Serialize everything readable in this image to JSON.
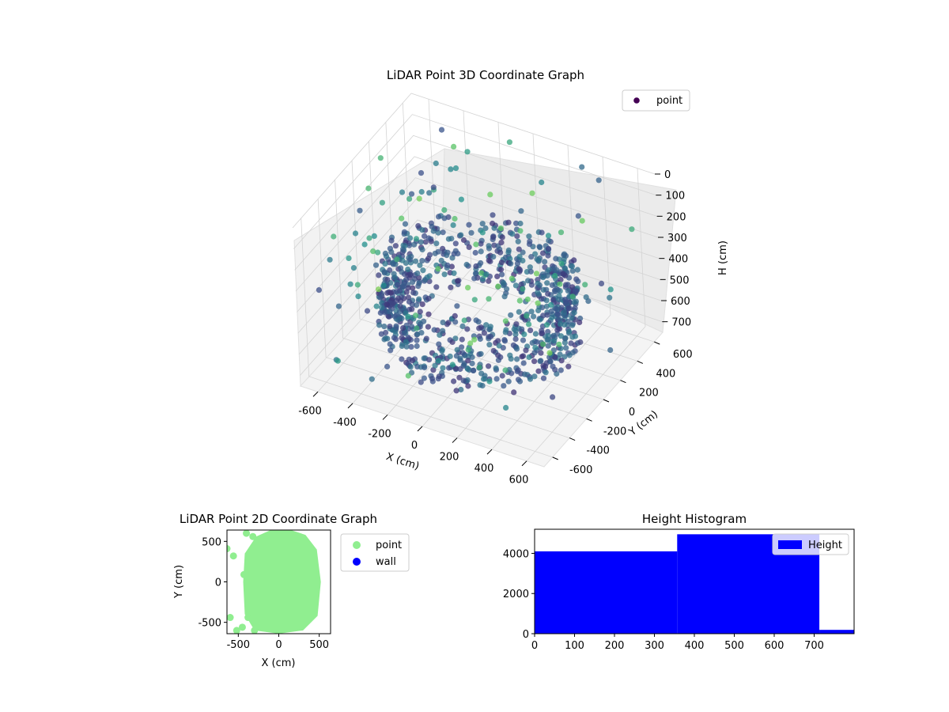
{
  "chart_data": [
    {
      "type": "scatter",
      "subtype": "3d",
      "title": "LiDAR Point 3D Coordinate Graph",
      "xlabel": "X (cm)",
      "ylabel": "Y (cm)",
      "zlabel": "H (cm)",
      "xticks": [
        -600,
        -400,
        -200,
        0,
        200,
        400,
        600
      ],
      "yticks": [
        -600,
        -400,
        -200,
        0,
        200,
        400,
        600
      ],
      "zticks": [
        0,
        100,
        200,
        300,
        400,
        500,
        600,
        700
      ],
      "xlim": [
        -700,
        700
      ],
      "ylim": [
        -700,
        700
      ],
      "zlim": [
        0,
        750
      ],
      "z_axis_inverted": true,
      "grid": true,
      "legend": {
        "position": "top-right",
        "entries": [
          "point"
        ]
      },
      "series": [
        {
          "name": "point",
          "color": "#440154",
          "colormap": "viridis",
          "description_shape": "dense ring of points at radius ~400-520 cm, heights ~300-650 cm, plus sparse outliers"
        }
      ]
    },
    {
      "type": "scatter",
      "title": "LiDAR Point 2D Coordinate Graph",
      "xlabel": "X (cm)",
      "ylabel": "Y (cm)",
      "xticks": [
        -500,
        0,
        500
      ],
      "yticks": [
        -500,
        0,
        500
      ],
      "xlim": [
        -640,
        640
      ],
      "ylim": [
        -640,
        640
      ],
      "legend": {
        "position": "outside-right",
        "entries": [
          "point",
          "wall"
        ]
      },
      "series": [
        {
          "name": "point",
          "color": "#90ee90",
          "points": [
            [
              -640,
              410
            ],
            [
              -560,
              320
            ],
            [
              -600,
              -440
            ],
            [
              -520,
              -600
            ],
            [
              -450,
              -560
            ],
            [
              -430,
              90
            ],
            [
              -400,
              600
            ],
            [
              -380,
              -440
            ],
            [
              -320,
              560
            ],
            [
              -300,
              -600
            ],
            [
              -260,
              150
            ],
            [
              -240,
              -500
            ],
            [
              -200,
              -250
            ]
          ]
        },
        {
          "name": "wall",
          "color": "#0000ff",
          "points": []
        }
      ]
    },
    {
      "type": "bar",
      "subtype": "histogram",
      "title": "Height Histogram",
      "xlabel": "",
      "ylabel": "",
      "bins": [
        [
          0,
          357,
          4100
        ],
        [
          357,
          713,
          4950
        ],
        [
          713,
          800,
          190
        ]
      ],
      "xticks": [
        0,
        100,
        200,
        300,
        400,
        500,
        600,
        700
      ],
      "yticks": [
        0,
        2000,
        4000
      ],
      "xlim": [
        0,
        800
      ],
      "ylim": [
        0,
        5200
      ],
      "legend": {
        "position": "top-right",
        "entries": [
          "Height"
        ]
      },
      "series": [
        {
          "name": "Height",
          "color": "#0000ff"
        }
      ]
    }
  ]
}
